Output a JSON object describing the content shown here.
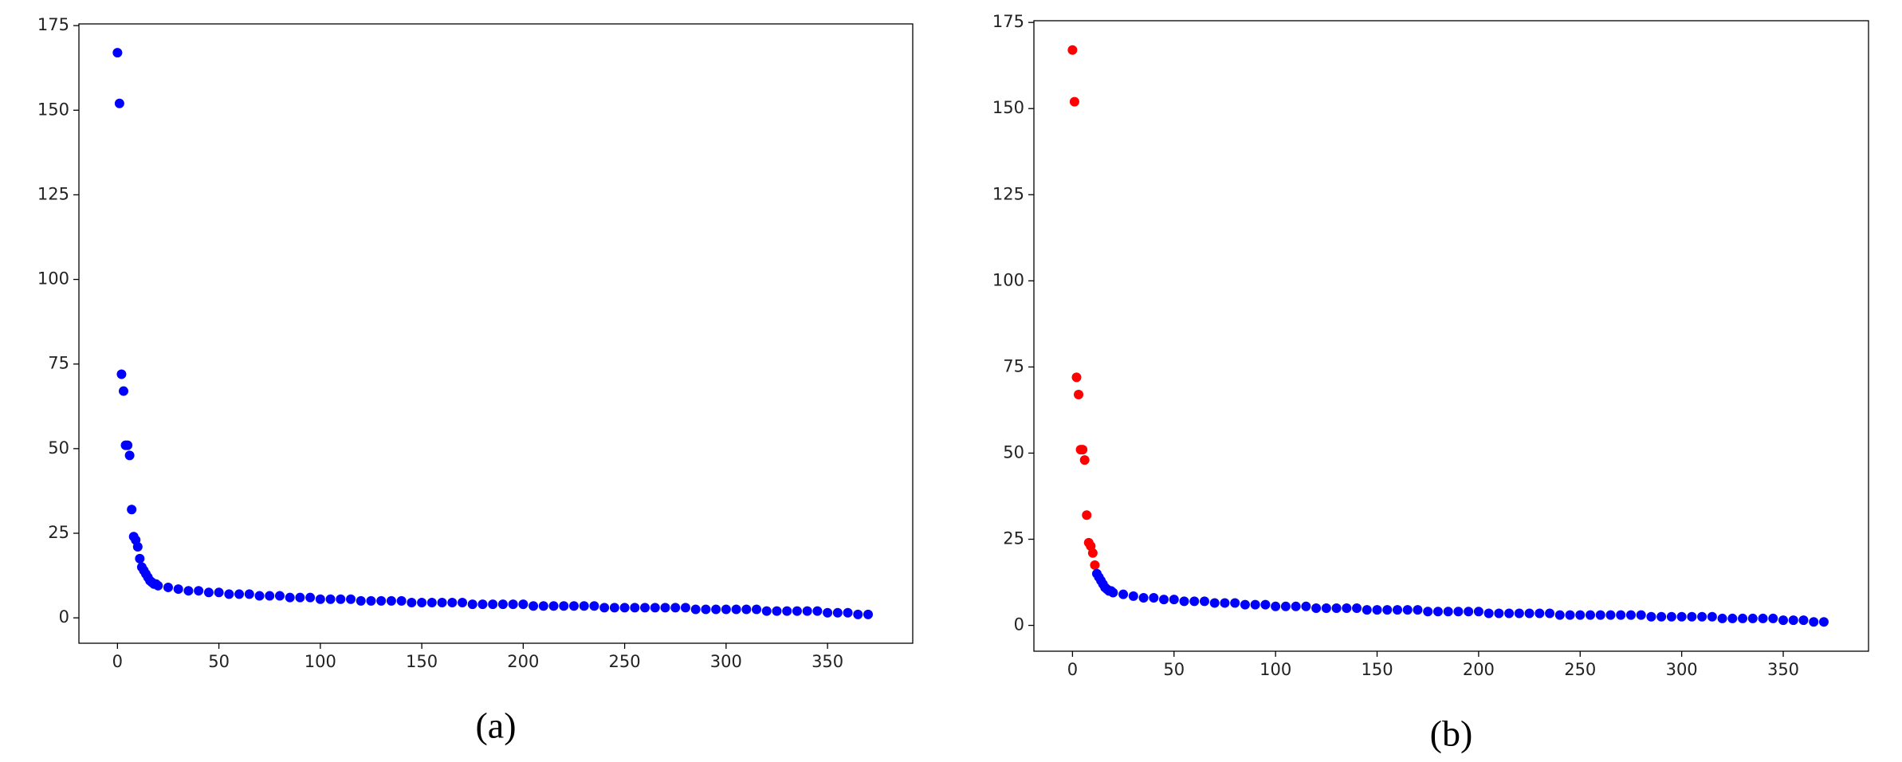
{
  "chart_data": [
    {
      "type": "scatter",
      "caption": "(a)",
      "xlim": [
        -19,
        392
      ],
      "ylim": [
        -7.5,
        175.5
      ],
      "xticks": [
        0,
        50,
        100,
        150,
        200,
        250,
        300,
        350
      ],
      "yticks": [
        0,
        25,
        50,
        75,
        100,
        125,
        150,
        175
      ],
      "series": [
        {
          "color": "#0000ff",
          "x": [
            0,
            1,
            2,
            3,
            4,
            5,
            6,
            7,
            8,
            9,
            10,
            11,
            12,
            13,
            14,
            15,
            16,
            17,
            18,
            19,
            20,
            25,
            30,
            35,
            40,
            45,
            50,
            55,
            60,
            65,
            70,
            75,
            80,
            85,
            90,
            95,
            100,
            105,
            110,
            115,
            120,
            125,
            130,
            135,
            140,
            145,
            150,
            155,
            160,
            165,
            170,
            175,
            180,
            185,
            190,
            195,
            200,
            205,
            210,
            215,
            220,
            225,
            230,
            235,
            240,
            245,
            250,
            255,
            260,
            265,
            270,
            275,
            280,
            285,
            290,
            295,
            300,
            305,
            310,
            315,
            320,
            325,
            330,
            335,
            340,
            345,
            350,
            355,
            360,
            365,
            370
          ],
          "values": [
            167,
            152,
            72,
            67,
            51,
            51,
            48,
            32,
            24,
            23,
            21,
            17.5,
            15,
            14,
            13,
            12,
            11,
            10.5,
            10,
            10,
            9.5,
            9,
            8.5,
            8,
            8,
            7.5,
            7.5,
            7,
            7,
            7,
            6.5,
            6.5,
            6.5,
            6,
            6,
            6,
            5.5,
            5.5,
            5.5,
            5.5,
            5,
            5,
            5,
            5,
            5,
            4.5,
            4.5,
            4.5,
            4.5,
            4.5,
            4.5,
            4,
            4,
            4,
            4,
            4,
            4,
            3.5,
            3.5,
            3.5,
            3.5,
            3.5,
            3.5,
            3.5,
            3,
            3,
            3,
            3,
            3,
            3,
            3,
            3,
            3,
            2.5,
            2.5,
            2.5,
            2.5,
            2.5,
            2.5,
            2.5,
            2,
            2,
            2,
            2,
            2,
            2,
            1.5,
            1.5,
            1.5,
            1,
            1
          ]
        }
      ]
    },
    {
      "type": "scatter",
      "caption": "(b)",
      "xlim": [
        -19,
        392
      ],
      "ylim": [
        -7.5,
        175.5
      ],
      "xticks": [
        0,
        50,
        100,
        150,
        200,
        250,
        300,
        350
      ],
      "yticks": [
        0,
        25,
        50,
        75,
        100,
        125,
        150,
        175
      ],
      "series": [
        {
          "color": "#ff0000",
          "x": [
            0,
            1,
            2,
            3,
            4,
            5,
            6,
            7,
            8,
            9,
            10,
            11
          ],
          "values": [
            167,
            152,
            72,
            67,
            51,
            51,
            48,
            32,
            24,
            23,
            21,
            17.5
          ]
        },
        {
          "color": "#0000ff",
          "x": [
            12,
            13,
            14,
            15,
            16,
            17,
            18,
            19,
            20,
            25,
            30,
            35,
            40,
            45,
            50,
            55,
            60,
            65,
            70,
            75,
            80,
            85,
            90,
            95,
            100,
            105,
            110,
            115,
            120,
            125,
            130,
            135,
            140,
            145,
            150,
            155,
            160,
            165,
            170,
            175,
            180,
            185,
            190,
            195,
            200,
            205,
            210,
            215,
            220,
            225,
            230,
            235,
            240,
            245,
            250,
            255,
            260,
            265,
            270,
            275,
            280,
            285,
            290,
            295,
            300,
            305,
            310,
            315,
            320,
            325,
            330,
            335,
            340,
            345,
            350,
            355,
            360,
            365,
            370
          ],
          "values": [
            15,
            14,
            13,
            12,
            11,
            10.5,
            10,
            10,
            9.5,
            9,
            8.5,
            8,
            8,
            7.5,
            7.5,
            7,
            7,
            7,
            6.5,
            6.5,
            6.5,
            6,
            6,
            6,
            5.5,
            5.5,
            5.5,
            5.5,
            5,
            5,
            5,
            5,
            5,
            4.5,
            4.5,
            4.5,
            4.5,
            4.5,
            4.5,
            4,
            4,
            4,
            4,
            4,
            4,
            3.5,
            3.5,
            3.5,
            3.5,
            3.5,
            3.5,
            3.5,
            3,
            3,
            3,
            3,
            3,
            3,
            3,
            3,
            3,
            2.5,
            2.5,
            2.5,
            2.5,
            2.5,
            2.5,
            2.5,
            2,
            2,
            2,
            2,
            2,
            2,
            1.5,
            1.5,
            1.5,
            1,
            1
          ]
        }
      ]
    }
  ]
}
